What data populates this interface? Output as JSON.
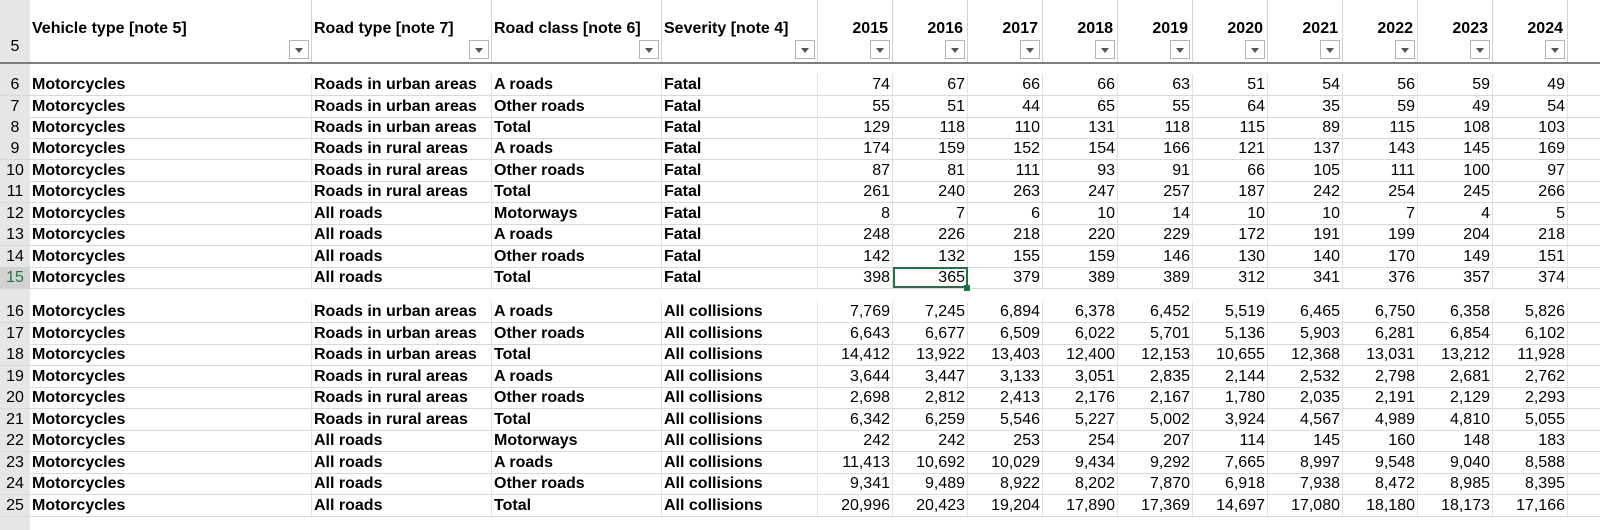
{
  "header_row": "5",
  "columns": [
    {
      "label": "Vehicle type [note 5]",
      "filter_icon": "dropdown-arrow"
    },
    {
      "label": "Road type [note 7]",
      "filter_icon": "dropdown-arrow"
    },
    {
      "label": "Road class [note 6]",
      "filter_icon": "dropdown-arrow"
    },
    {
      "label": "Severity [note 4]",
      "filter_icon": "dropdown-arrow"
    },
    {
      "label": "2015",
      "filter_icon": "dropdown-arrow"
    },
    {
      "label": "2016",
      "filter_icon": "dropdown-arrow"
    },
    {
      "label": "2017",
      "filter_icon": "dropdown-arrow"
    },
    {
      "label": "2018",
      "filter_icon": "dropdown-arrow"
    },
    {
      "label": "2019",
      "filter_icon": "dropdown-arrow"
    },
    {
      "label": "2020",
      "filter_icon": "dropdown-arrow"
    },
    {
      "label": "2021",
      "filter_icon": "dropdown-arrow"
    },
    {
      "label": "2022",
      "filter_icon": "dropdown-arrow"
    },
    {
      "label": "2023",
      "filter_icon": "dropdown-arrow"
    },
    {
      "label": "2024",
      "filter_icon": "dropdown-arrow"
    }
  ],
  "rows": [
    {
      "num": "6",
      "cells": [
        "Motorcycles",
        "Roads in urban areas",
        "A roads",
        "Fatal",
        "74",
        "67",
        "66",
        "66",
        "63",
        "51",
        "54",
        "56",
        "59",
        "49"
      ]
    },
    {
      "num": "7",
      "cells": [
        "Motorcycles",
        "Roads in urban areas",
        "Other roads",
        "Fatal",
        "55",
        "51",
        "44",
        "65",
        "55",
        "64",
        "35",
        "59",
        "49",
        "54"
      ]
    },
    {
      "num": "8",
      "cells": [
        "Motorcycles",
        "Roads in urban areas",
        "Total",
        "Fatal",
        "129",
        "118",
        "110",
        "131",
        "118",
        "115",
        "89",
        "115",
        "108",
        "103"
      ]
    },
    {
      "num": "9",
      "cells": [
        "Motorcycles",
        "Roads in rural areas",
        "A roads",
        "Fatal",
        "174",
        "159",
        "152",
        "154",
        "166",
        "121",
        "137",
        "143",
        "145",
        "169"
      ]
    },
    {
      "num": "10",
      "cells": [
        "Motorcycles",
        "Roads in rural areas",
        "Other roads",
        "Fatal",
        "87",
        "81",
        "111",
        "93",
        "91",
        "66",
        "105",
        "111",
        "100",
        "97"
      ]
    },
    {
      "num": "11",
      "cells": [
        "Motorcycles",
        "Roads in rural areas",
        "Total",
        "Fatal",
        "261",
        "240",
        "263",
        "247",
        "257",
        "187",
        "242",
        "254",
        "245",
        "266"
      ]
    },
    {
      "num": "12",
      "cells": [
        "Motorcycles",
        "All roads",
        "Motorways",
        "Fatal",
        "8",
        "7",
        "6",
        "10",
        "14",
        "10",
        "10",
        "7",
        "4",
        "5"
      ]
    },
    {
      "num": "13",
      "cells": [
        "Motorcycles",
        "All roads",
        "A roads",
        "Fatal",
        "248",
        "226",
        "218",
        "220",
        "229",
        "172",
        "191",
        "199",
        "204",
        "218"
      ]
    },
    {
      "num": "14",
      "cells": [
        "Motorcycles",
        "All roads",
        "Other roads",
        "Fatal",
        "142",
        "132",
        "155",
        "159",
        "146",
        "130",
        "140",
        "170",
        "149",
        "151"
      ]
    },
    {
      "num": "15",
      "cells": [
        "Motorcycles",
        "All roads",
        "Total",
        "Fatal",
        "398",
        "365",
        "379",
        "389",
        "389",
        "312",
        "341",
        "376",
        "357",
        "374"
      ]
    },
    {
      "num": "16",
      "cells": [
        "Motorcycles",
        "Roads in urban areas",
        "A roads",
        "All collisions",
        "7,769",
        "7,245",
        "6,894",
        "6,378",
        "6,452",
        "5,519",
        "6,465",
        "6,750",
        "6,358",
        "5,826"
      ]
    },
    {
      "num": "17",
      "cells": [
        "Motorcycles",
        "Roads in urban areas",
        "Other roads",
        "All collisions",
        "6,643",
        "6,677",
        "6,509",
        "6,022",
        "5,701",
        "5,136",
        "5,903",
        "6,281",
        "6,854",
        "6,102"
      ]
    },
    {
      "num": "18",
      "cells": [
        "Motorcycles",
        "Roads in urban areas",
        "Total",
        "All collisions",
        "14,412",
        "13,922",
        "13,403",
        "12,400",
        "12,153",
        "10,655",
        "12,368",
        "13,031",
        "13,212",
        "11,928"
      ]
    },
    {
      "num": "19",
      "cells": [
        "Motorcycles",
        "Roads in rural areas",
        "A roads",
        "All collisions",
        "3,644",
        "3,447",
        "3,133",
        "3,051",
        "2,835",
        "2,144",
        "2,532",
        "2,798",
        "2,681",
        "2,762"
      ]
    },
    {
      "num": "20",
      "cells": [
        "Motorcycles",
        "Roads in rural areas",
        "Other roads",
        "All collisions",
        "2,698",
        "2,812",
        "2,413",
        "2,176",
        "2,167",
        "1,780",
        "2,035",
        "2,191",
        "2,129",
        "2,293"
      ]
    },
    {
      "num": "21",
      "cells": [
        "Motorcycles",
        "Roads in rural areas",
        "Total",
        "All collisions",
        "6,342",
        "6,259",
        "5,546",
        "5,227",
        "5,002",
        "3,924",
        "4,567",
        "4,989",
        "4,810",
        "5,055"
      ]
    },
    {
      "num": "22",
      "cells": [
        "Motorcycles",
        "All roads",
        "Motorways",
        "All collisions",
        "242",
        "242",
        "253",
        "254",
        "207",
        "114",
        "145",
        "160",
        "148",
        "183"
      ]
    },
    {
      "num": "23",
      "cells": [
        "Motorcycles",
        "All roads",
        "A roads",
        "All collisions",
        "11,413",
        "10,692",
        "10,029",
        "9,434",
        "9,292",
        "7,665",
        "8,997",
        "9,548",
        "9,040",
        "8,588"
      ]
    },
    {
      "num": "24",
      "cells": [
        "Motorcycles",
        "All roads",
        "Other roads",
        "All collisions",
        "9,341",
        "9,489",
        "8,922",
        "8,202",
        "7,870",
        "6,918",
        "7,938",
        "8,472",
        "8,985",
        "8,395"
      ]
    },
    {
      "num": "25",
      "cells": [
        "Motorcycles",
        "All roads",
        "Total",
        "All collisions",
        "20,996",
        "20,423",
        "19,204",
        "17,890",
        "17,369",
        "14,697",
        "17,080",
        "18,180",
        "18,173",
        "17,166"
      ]
    }
  ],
  "selection": {
    "row": "15",
    "column": "2016",
    "value": "365"
  },
  "colors": {
    "accent": "#217346",
    "row_header_bg": "#e6e6e6",
    "gridline": "#d9d9d9"
  }
}
